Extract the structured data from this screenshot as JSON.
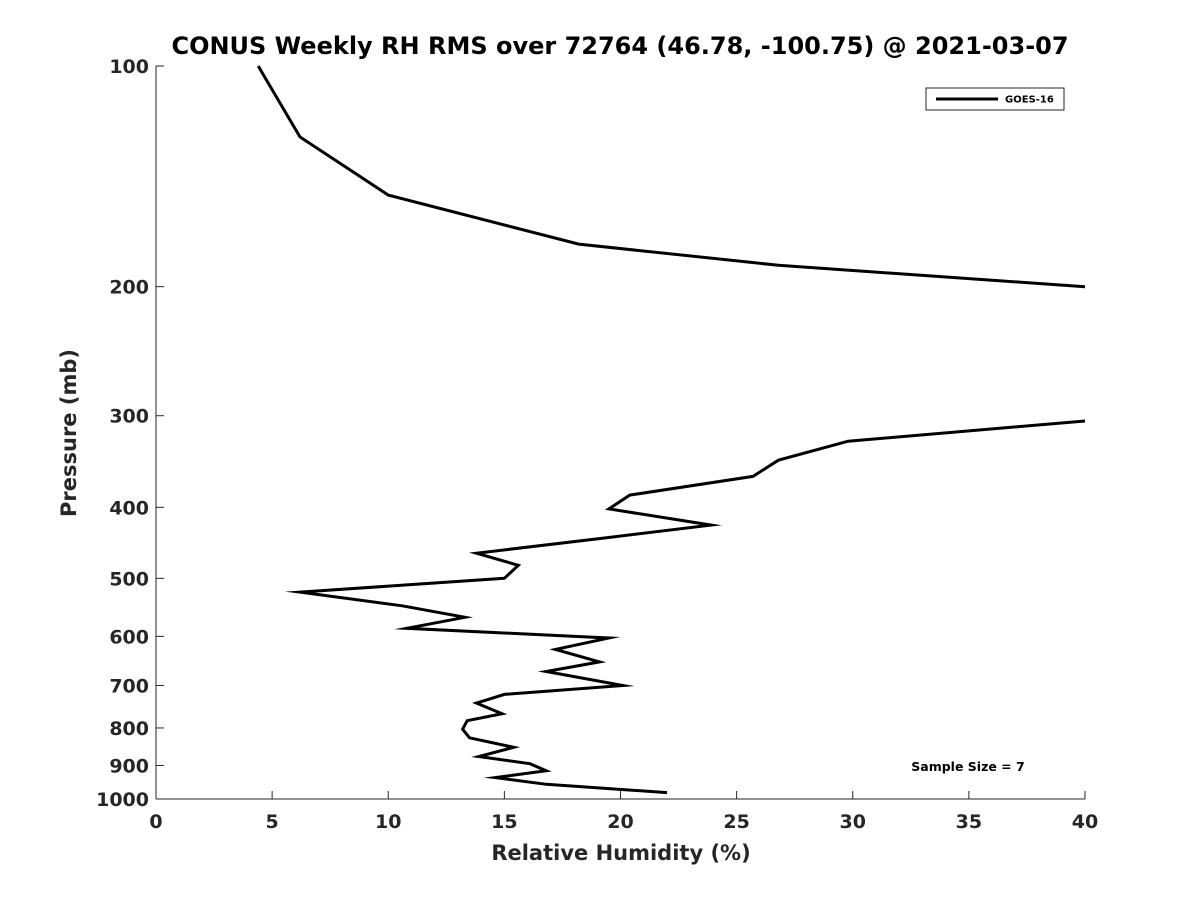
{
  "chart_data": {
    "type": "line",
    "title": "CONUS Weekly RH RMS over 72764 (46.78, -100.75) @ 2021-03-07",
    "xlabel": "Relative Humidity (%)",
    "ylabel": "Pressure (mb)",
    "xlim": [
      0,
      40
    ],
    "ylim": [
      1000,
      100
    ],
    "y_scale": "log",
    "y_reversed": true,
    "grid": false,
    "legend_position": "top-right",
    "x_ticks": [
      0,
      5,
      10,
      15,
      20,
      25,
      30,
      35,
      40
    ],
    "y_ticks": [
      100,
      200,
      300,
      400,
      500,
      600,
      700,
      800,
      900,
      1000
    ],
    "annotation": "Sample Size = 7",
    "series": [
      {
        "name": "GOES-16",
        "color": "#000000",
        "segments": [
          {
            "x": [
              4.4,
              6.2,
              10.0,
              18.2,
              26.8,
              40.0
            ],
            "y": [
              100,
              125,
              150,
              175,
              187,
              200
            ]
          },
          {
            "x": [
              40.0,
              29.8,
              26.8,
              25.7,
              20.4,
              19.5,
              23.9,
              19.4,
              13.8,
              15.6,
              15.0,
              6.2,
              10.6,
              13.3,
              10.8,
              19.5,
              17.2,
              19.1,
              16.8,
              20.1,
              15.0,
              13.8,
              14.9,
              13.4,
              13.2,
              13.5,
              15.4,
              13.9,
              16.1,
              16.8,
              14.6,
              16.8,
              22.0
            ],
            "y": [
              305,
              325,
              345,
              363,
              385,
              402,
              423,
              440,
              462,
              480,
              500,
              522,
              545,
              565,
              585,
              603,
              625,
              650,
              670,
              700,
              720,
              740,
              765,
              782,
              803,
              825,
              850,
              875,
              895,
              915,
              935,
              955,
              980
            ]
          }
        ]
      }
    ]
  }
}
